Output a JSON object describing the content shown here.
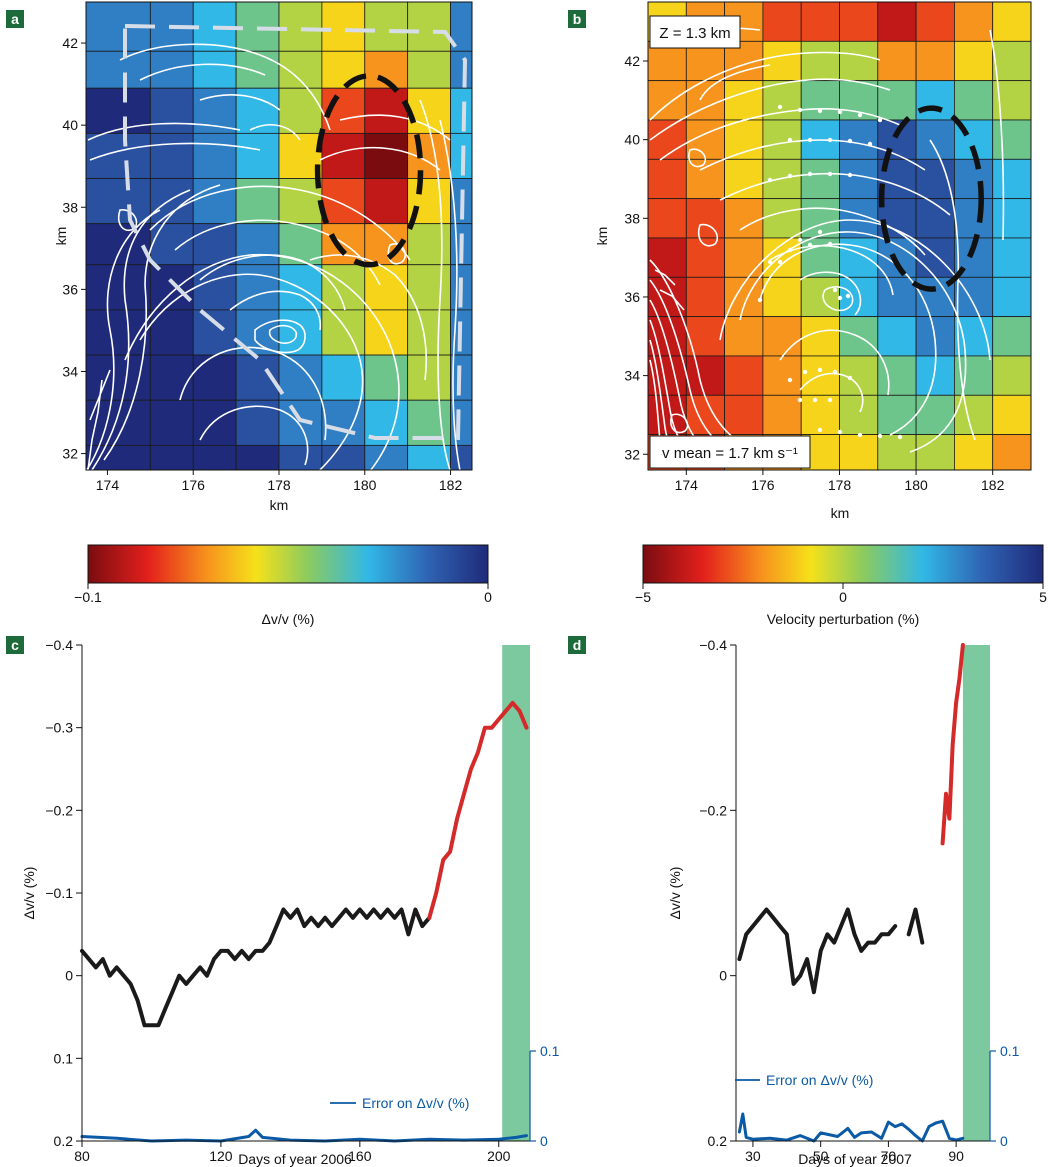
{
  "panels": {
    "a": {
      "label": "a"
    },
    "b": {
      "label": "b"
    },
    "c": {
      "label": "c"
    },
    "d": {
      "label": "d"
    }
  },
  "chart_data": [
    {
      "panel": "a",
      "type": "heatmap",
      "xlabel": "km",
      "ylabel": "km",
      "xlim": [
        173.5,
        182.5
      ],
      "ylim": [
        31.6,
        43.0
      ],
      "xticks": [
        "174",
        "176",
        "178",
        "180",
        "182"
      ],
      "yticks": [
        "32",
        "34",
        "36",
        "38",
        "40",
        "42"
      ],
      "grid_x": [
        173.5,
        175.0,
        176.0,
        177.0,
        178.0,
        179.0,
        180.0,
        181.0,
        182.0,
        182.5
      ],
      "grid_y": [
        31.6,
        32.2,
        33.3,
        34.4,
        35.5,
        36.6,
        37.6,
        38.7,
        39.8,
        40.9,
        41.8,
        43.0
      ],
      "values_rows_top_to_bottom": [
        [
          -0.02,
          -0.02,
          -0.03,
          -0.04,
          -0.05,
          -0.06,
          -0.05,
          -0.05,
          -0.02
        ],
        [
          -0.02,
          -0.02,
          -0.03,
          -0.04,
          -0.05,
          -0.06,
          -0.07,
          -0.05,
          -0.02
        ],
        [
          0.0,
          -0.01,
          -0.02,
          -0.03,
          -0.05,
          -0.08,
          -0.09,
          -0.06,
          -0.03
        ],
        [
          -0.01,
          -0.01,
          -0.02,
          -0.03,
          -0.06,
          -0.09,
          -0.1,
          -0.07,
          -0.03
        ],
        [
          -0.01,
          -0.01,
          -0.02,
          -0.04,
          -0.05,
          -0.08,
          -0.09,
          -0.06,
          -0.02
        ],
        [
          0.0,
          -0.01,
          -0.01,
          -0.02,
          -0.04,
          -0.07,
          -0.07,
          -0.05,
          -0.02
        ],
        [
          0.0,
          0.0,
          -0.01,
          -0.02,
          -0.03,
          -0.05,
          -0.06,
          -0.05,
          -0.02
        ],
        [
          0.0,
          0.0,
          -0.01,
          -0.02,
          -0.03,
          -0.05,
          -0.06,
          -0.05,
          -0.02
        ],
        [
          0.0,
          0.0,
          0.0,
          -0.01,
          -0.02,
          -0.03,
          -0.04,
          -0.05,
          -0.02
        ],
        [
          0.0,
          0.0,
          0.0,
          -0.01,
          -0.02,
          -0.02,
          -0.03,
          -0.04,
          -0.02
        ],
        [
          0.0,
          0.0,
          0.0,
          0.0,
          -0.01,
          -0.01,
          -0.02,
          -0.03,
          -0.01
        ]
      ],
      "ellipse": {
        "cx": 180.1,
        "cy": 38.9,
        "rx": 1.2,
        "ry": 2.3
      }
    },
    {
      "panel": "a-colorbar",
      "type": "colorbar",
      "label": "Δv/v (%)",
      "range": [
        -0.1,
        0
      ],
      "ticks": [
        "−0.1",
        "0"
      ]
    },
    {
      "panel": "b",
      "type": "heatmap",
      "title": "Z = 1.3 km",
      "annotation": "v mean = 1.7 km s⁻¹",
      "xlabel": "km",
      "ylabel": "km",
      "xlim": [
        173.0,
        183.0
      ],
      "ylim": [
        31.6,
        43.5
      ],
      "xticks": [
        "174",
        "176",
        "178",
        "180",
        "182"
      ],
      "yticks": [
        "32",
        "34",
        "36",
        "38",
        "40",
        "42"
      ],
      "grid_x": [
        173.0,
        174.0,
        175.0,
        176.0,
        177.0,
        178.0,
        179.0,
        180.0,
        181.0,
        182.0,
        183.0
      ],
      "grid_y": [
        31.6,
        32.5,
        33.5,
        34.5,
        35.5,
        36.5,
        37.5,
        38.5,
        39.5,
        40.5,
        41.5,
        42.5,
        43.5
      ],
      "values_rows_top_to_bottom": [
        [
          -1,
          -2,
          -2,
          -3,
          -3,
          -3,
          -4,
          -3,
          -2,
          -1
        ],
        [
          -2,
          -2,
          -2,
          -1,
          0,
          0,
          -2,
          -2,
          -1,
          0
        ],
        [
          -2,
          -2,
          -1,
          0,
          1,
          1,
          1,
          2,
          1,
          0
        ],
        [
          -3,
          -2,
          -1,
          0,
          2,
          3,
          4,
          3,
          2,
          1
        ],
        [
          -3,
          -2,
          -1,
          0,
          1,
          3,
          4,
          4,
          3,
          2
        ],
        [
          -3,
          -3,
          -2,
          0,
          1,
          3,
          4,
          4,
          3,
          2
        ],
        [
          -4,
          -3,
          -2,
          -1,
          1,
          2,
          3,
          4,
          3,
          2
        ],
        [
          -4,
          -3,
          -2,
          -1,
          0,
          2,
          3,
          3,
          3,
          2
        ],
        [
          -4,
          -3,
          -2,
          -2,
          -1,
          1,
          2,
          3,
          2,
          1
        ],
        [
          -4,
          -4,
          -3,
          -2,
          -1,
          0,
          1,
          2,
          1,
          0
        ],
        [
          -4,
          -3,
          -3,
          -2,
          -1,
          0,
          1,
          1,
          0,
          -1
        ],
        [
          -3,
          -3,
          -2,
          -2,
          -1,
          -1,
          0,
          0,
          -1,
          -2
        ]
      ],
      "ellipse": {
        "cx": 180.4,
        "cy": 38.5,
        "rx": 1.3,
        "ry": 2.3
      }
    },
    {
      "panel": "b-colorbar",
      "type": "colorbar",
      "label": "Velocity perturbation (%)",
      "range": [
        -5,
        5
      ],
      "ticks": [
        "−5",
        "0",
        "5"
      ]
    },
    {
      "panel": "c",
      "type": "line",
      "xlabel": "Days of year 2006",
      "ylabel": "Δv/v (%)",
      "xlim": [
        80,
        209
      ],
      "ylim": [
        0.2,
        -0.4
      ],
      "xticks": [
        "80",
        "120",
        "160",
        "200"
      ],
      "yticks": [
        "−0.4",
        "−0.3",
        "−0.2",
        "−0.1",
        "0",
        "0.1",
        "0.2"
      ],
      "right_axis_ticks": [
        "0.1",
        "0"
      ],
      "legend": "Error on Δv/v (%)",
      "highlight_x": [
        201,
        209
      ],
      "series": [
        {
          "color": "#1a1a1a",
          "x": [
            80,
            82,
            84,
            86,
            88,
            90,
            92,
            94,
            96,
            98,
            100,
            102,
            104,
            106,
            108,
            110,
            112,
            114,
            116,
            118,
            120,
            122,
            124,
            126,
            128,
            130,
            132,
            134,
            136,
            138,
            140,
            142,
            144,
            146,
            148,
            150,
            152,
            154,
            156,
            158,
            160,
            162,
            164,
            166,
            168,
            170,
            172,
            174,
            176,
            178,
            180
          ],
          "y": [
            -0.03,
            -0.02,
            -0.01,
            -0.02,
            0.0,
            -0.01,
            0.0,
            0.01,
            0.03,
            0.06,
            0.06,
            0.06,
            0.04,
            0.02,
            0.0,
            0.01,
            0.0,
            -0.01,
            0.0,
            -0.02,
            -0.03,
            -0.03,
            -0.02,
            -0.03,
            -0.02,
            -0.03,
            -0.03,
            -0.04,
            -0.06,
            -0.08,
            -0.07,
            -0.08,
            -0.06,
            -0.07,
            -0.06,
            -0.07,
            -0.06,
            -0.07,
            -0.08,
            -0.07,
            -0.08,
            -0.07,
            -0.08,
            -0.07,
            -0.08,
            -0.07,
            -0.08,
            -0.05,
            -0.08,
            -0.06,
            -0.07
          ]
        },
        {
          "color": "#d42a2a",
          "x": [
            180,
            182,
            184,
            186,
            188,
            190,
            192,
            194,
            196,
            198,
            200,
            202,
            204,
            206,
            208
          ],
          "y": [
            -0.07,
            -0.1,
            -0.14,
            -0.15,
            -0.19,
            -0.22,
            -0.25,
            -0.27,
            -0.3,
            -0.3,
            -0.31,
            -0.32,
            -0.33,
            -0.32,
            -0.3
          ]
        },
        {
          "color": "#0b5aa6",
          "axis": "right",
          "x": [
            80,
            90,
            100,
            110,
            120,
            128,
            130,
            132,
            140,
            150,
            160,
            170,
            180,
            190,
            200,
            205,
            208
          ],
          "y": [
            0.005,
            0.003,
            0.0,
            0.001,
            0.0,
            0.005,
            0.012,
            0.004,
            0.001,
            0.0,
            0.002,
            0.0,
            0.002,
            0.001,
            0.002,
            0.004,
            0.006
          ]
        }
      ]
    },
    {
      "panel": "d",
      "type": "line",
      "xlabel": "Days of year 2007",
      "ylabel": "Δv/v (%)",
      "xlim": [
        25,
        100
      ],
      "ylim": [
        0.2,
        -0.4
      ],
      "xticks": [
        "30",
        "50",
        "70",
        "90"
      ],
      "yticks": [
        "−0.4",
        "−0.2",
        "0",
        "0.2"
      ],
      "right_axis_ticks": [
        "0.1",
        "0"
      ],
      "legend": "Error on Δv/v (%)",
      "highlight_x": [
        92,
        100
      ],
      "series": [
        {
          "color": "#1a1a1a",
          "x": [
            26,
            28,
            30,
            32,
            34,
            36,
            38,
            40,
            42,
            44,
            46,
            48,
            50,
            52,
            54,
            56,
            58,
            60,
            62,
            64,
            66,
            68,
            70,
            72
          ],
          "y": [
            -0.02,
            -0.05,
            -0.06,
            -0.07,
            -0.08,
            -0.07,
            -0.06,
            -0.05,
            0.01,
            0.0,
            -0.02,
            0.02,
            -0.03,
            -0.05,
            -0.04,
            -0.06,
            -0.08,
            -0.05,
            -0.03,
            -0.04,
            -0.04,
            -0.05,
            -0.05,
            -0.06
          ]
        },
        {
          "color": "#1a1a1a",
          "x": [
            76,
            78,
            80
          ],
          "y": [
            -0.05,
            -0.08,
            -0.04
          ]
        },
        {
          "color": "#d42a2a",
          "x": [
            86,
            87,
            88,
            89,
            90,
            91,
            92
          ],
          "y": [
            -0.16,
            -0.22,
            -0.19,
            -0.28,
            -0.33,
            -0.36,
            -0.4
          ]
        },
        {
          "color": "#0b5aa6",
          "axis": "right",
          "x": [
            26,
            27,
            28,
            30,
            35,
            40,
            44,
            48,
            50,
            55,
            58,
            60,
            62,
            65,
            68,
            70,
            72,
            74,
            76,
            78,
            80,
            82,
            84,
            86,
            88,
            90,
            92
          ],
          "y": [
            0.01,
            0.03,
            0.004,
            0.002,
            0.003,
            0.001,
            0.006,
            0.0,
            0.009,
            0.005,
            0.014,
            0.004,
            0.009,
            0.01,
            0.003,
            0.021,
            0.016,
            0.019,
            0.013,
            0.006,
            0.0,
            0.016,
            0.02,
            0.022,
            0.003,
            0.001,
            0.003
          ]
        }
      ]
    }
  ]
}
